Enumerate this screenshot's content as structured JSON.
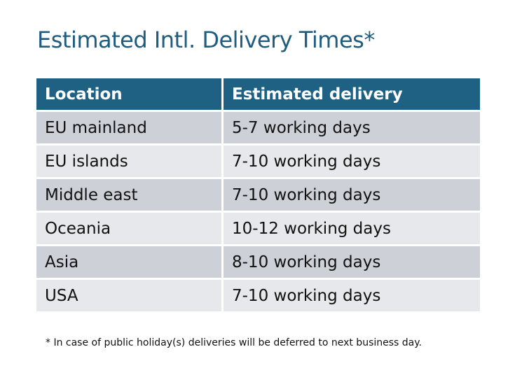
{
  "title": "Estimated Intl. Delivery Times*",
  "table": {
    "headers": [
      "Location",
      "Estimated delivery"
    ],
    "rows": [
      [
        "EU mainland",
        "5-7 working days"
      ],
      [
        "EU islands",
        "7-10 working days"
      ],
      [
        "Middle east",
        "7-10 working days"
      ],
      [
        "Oceania",
        "10-12 working days"
      ],
      [
        "Asia",
        "8-10 working days"
      ],
      [
        "USA",
        "7-10 working days"
      ]
    ]
  },
  "footnote": "* In case of public holiday(s) deliveries will be deferred to next business day.",
  "colors": {
    "header_bg": "#1f6182",
    "title": "#1f5c7d",
    "row_odd": "#cdd1d7",
    "row_even": "#e6e8eb"
  }
}
